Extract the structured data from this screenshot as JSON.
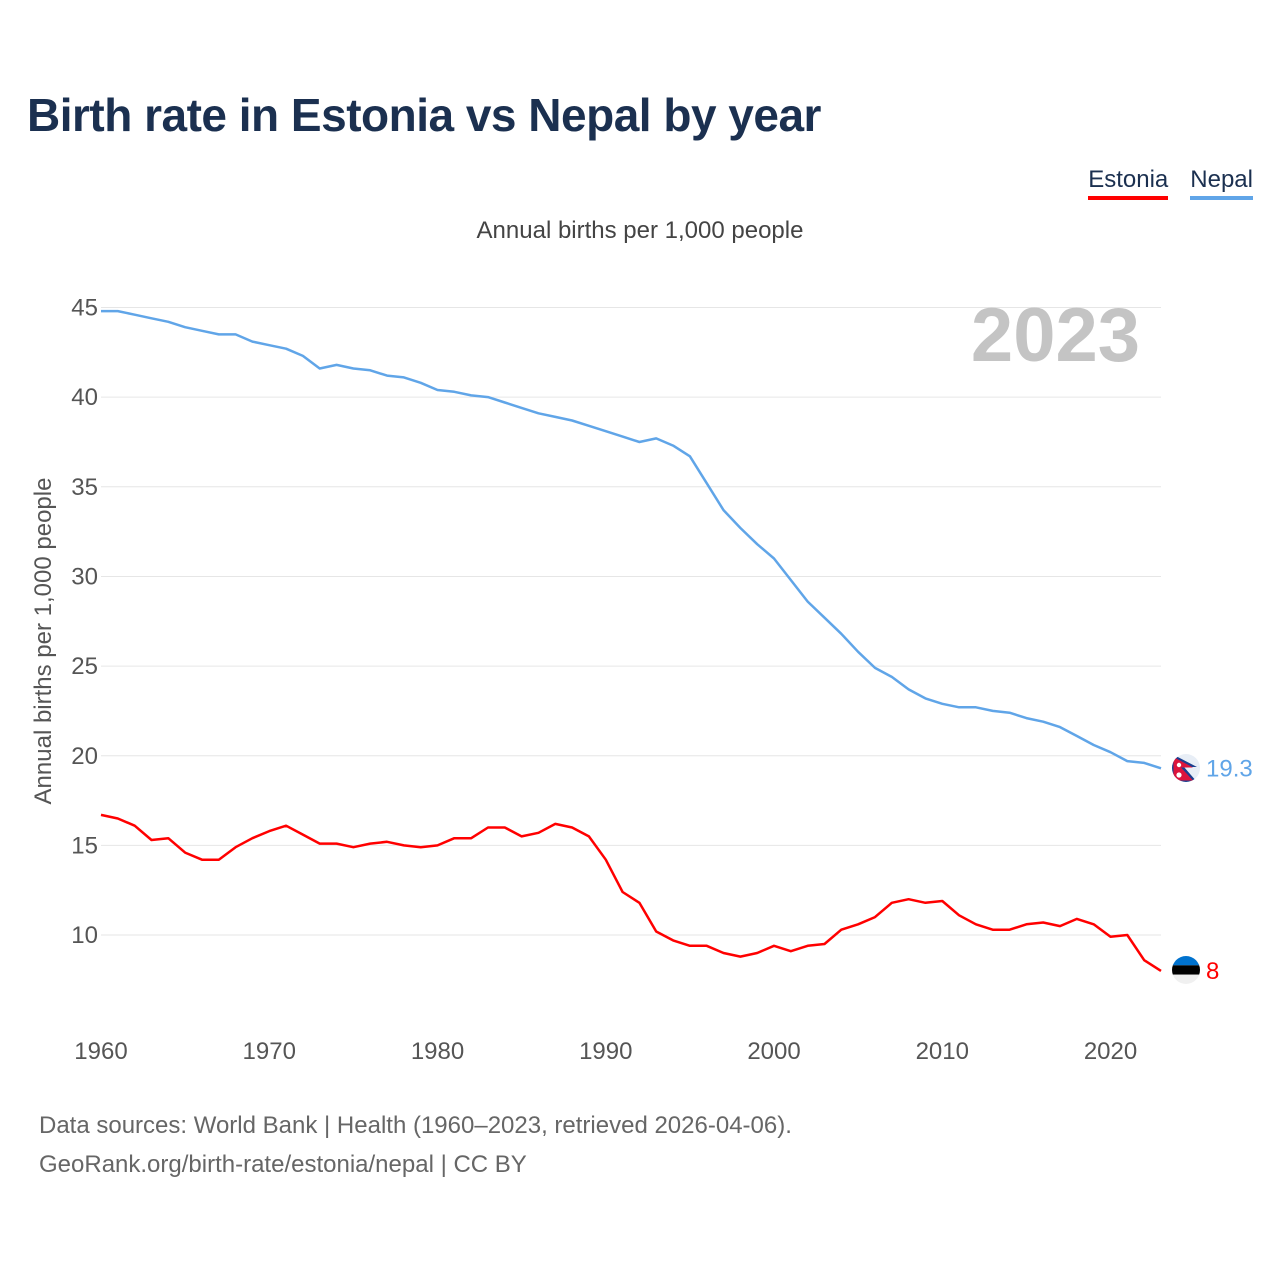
{
  "title": "Birth rate in Estonia vs Nepal by year",
  "legend": [
    {
      "name": "Estonia",
      "color": "#ff0000"
    },
    {
      "name": "Nepal",
      "color": "#60a5e8"
    }
  ],
  "source": {
    "line1": "Data sources: World Bank | Health (1960–2023, retrieved 2026-04-06).",
    "line2": "GeoRank.org/birth-rate/estonia/nepal | CC BY"
  },
  "chart_data": {
    "type": "line",
    "title": "Annual births per 1,000 people",
    "ylabel": "Annual births per 1,000 people",
    "xlabel": "",
    "year_watermark": "2023",
    "xlim": [
      1960,
      2023
    ],
    "ylim": [
      7,
      46
    ],
    "xticks": [
      1960,
      1970,
      1980,
      1990,
      2000,
      2010,
      2020
    ],
    "yticks": [
      10,
      15,
      20,
      25,
      30,
      35,
      40,
      45
    ],
    "x": [
      1960,
      1961,
      1962,
      1963,
      1964,
      1965,
      1966,
      1967,
      1968,
      1969,
      1970,
      1971,
      1972,
      1973,
      1974,
      1975,
      1976,
      1977,
      1978,
      1979,
      1980,
      1981,
      1982,
      1983,
      1984,
      1985,
      1986,
      1987,
      1988,
      1989,
      1990,
      1991,
      1992,
      1993,
      1994,
      1995,
      1996,
      1997,
      1998,
      1999,
      2000,
      2001,
      2002,
      2003,
      2004,
      2005,
      2006,
      2007,
      2008,
      2009,
      2010,
      2011,
      2012,
      2013,
      2014,
      2015,
      2016,
      2017,
      2018,
      2019,
      2020,
      2021,
      2022,
      2023
    ],
    "series": [
      {
        "name": "Estonia",
        "color": "#ff0000",
        "end_label": "8",
        "flag": "estonia",
        "values": [
          16.7,
          16.5,
          16.1,
          15.3,
          15.4,
          14.6,
          14.2,
          14.2,
          14.9,
          15.4,
          15.8,
          16.1,
          15.6,
          15.1,
          15.1,
          14.9,
          15.1,
          15.2,
          15.0,
          14.9,
          15.0,
          15.4,
          15.4,
          16.0,
          16.0,
          15.5,
          15.7,
          16.2,
          16.0,
          15.5,
          14.2,
          12.4,
          11.8,
          10.2,
          9.7,
          9.4,
          9.4,
          9.0,
          8.8,
          9.0,
          9.4,
          9.1,
          9.4,
          9.5,
          10.3,
          10.6,
          11.0,
          11.8,
          12.0,
          11.8,
          11.9,
          11.1,
          10.6,
          10.3,
          10.3,
          10.6,
          10.7,
          10.5,
          10.9,
          10.6,
          9.9,
          10.0,
          8.6,
          8.0
        ]
      },
      {
        "name": "Nepal",
        "color": "#60a5e8",
        "end_label": "19.3",
        "flag": "nepal",
        "values": [
          44.8,
          44.8,
          44.6,
          44.4,
          44.2,
          43.9,
          43.7,
          43.5,
          43.5,
          43.1,
          42.9,
          42.7,
          42.3,
          41.6,
          41.8,
          41.6,
          41.5,
          41.2,
          41.1,
          40.8,
          40.4,
          40.3,
          40.1,
          40.0,
          39.7,
          39.4,
          39.1,
          38.9,
          38.7,
          38.4,
          38.1,
          37.8,
          37.5,
          37.7,
          37.3,
          36.7,
          35.2,
          33.7,
          32.7,
          31.8,
          31.0,
          29.8,
          28.6,
          27.7,
          26.8,
          25.8,
          24.9,
          24.4,
          23.7,
          23.2,
          22.9,
          22.7,
          22.7,
          22.5,
          22.4,
          22.1,
          21.9,
          21.6,
          21.1,
          20.6,
          20.2,
          19.7,
          19.6,
          19.3
        ]
      }
    ]
  }
}
